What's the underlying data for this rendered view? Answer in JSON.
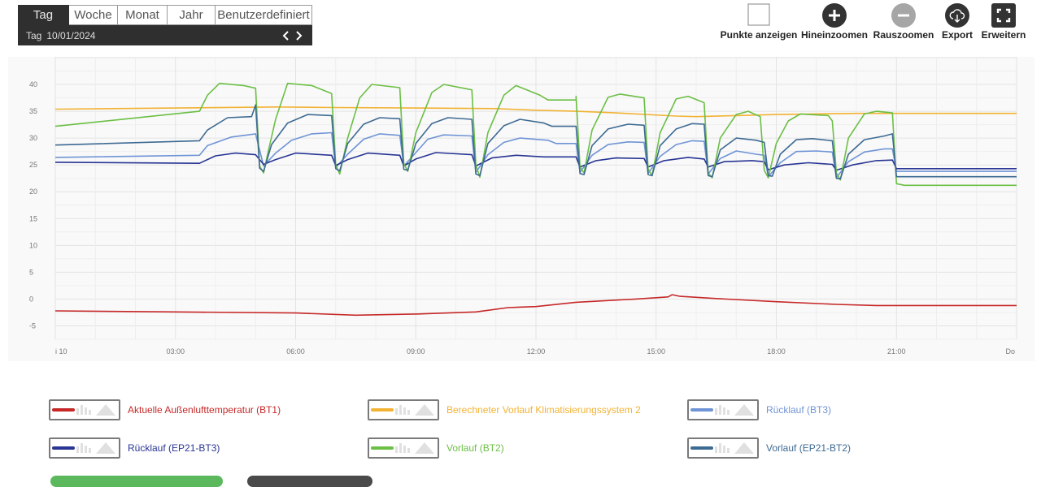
{
  "period": {
    "tabs": [
      {
        "label": "Tag",
        "active": true
      },
      {
        "label": "Woche",
        "active": false
      },
      {
        "label": "Monat",
        "active": false
      },
      {
        "label": "Jahr",
        "active": false
      },
      {
        "label": "Benutzerdefiniert",
        "active": false
      }
    ],
    "unit_label": "Tag",
    "date": "10/01/2024"
  },
  "toolbar": {
    "show_points": "Punkte anzeigen",
    "zoom_in": "Hineinzoomen",
    "zoom_out": "Rauszoomen",
    "export": "Export",
    "expand": "Erweitern"
  },
  "chart_data": {
    "type": "line",
    "title": "",
    "xlabel": "",
    "ylabel": "",
    "xlim": [
      0,
      24
    ],
    "ylim": [
      -7.5,
      45
    ],
    "x_ticks": [
      0,
      3,
      6,
      9,
      12,
      15,
      18,
      21,
      24
    ],
    "x_tick_labels": [
      "i 10",
      "03:00",
      "06:00",
      "09:00",
      "12:00",
      "15:00",
      "18:00",
      "21:00",
      "Do"
    ],
    "y_ticks": [
      -5,
      0,
      5,
      10,
      15,
      20,
      25,
      30,
      35,
      40
    ],
    "y_tick_labels": [
      "-5",
      "0",
      "5",
      "10",
      "15",
      "20",
      "25",
      "30",
      "35",
      "40"
    ],
    "grid": true,
    "legend_position": "bottom",
    "series": [
      {
        "name": "Aktuelle Außenlufttemperatur (BT1)",
        "color": "#c62828",
        "points": [
          [
            0,
            -2.2
          ],
          [
            3,
            -2.4
          ],
          [
            6,
            -2.6
          ],
          [
            7.5,
            -3.0
          ],
          [
            9,
            -2.8
          ],
          [
            10.5,
            -2.4
          ],
          [
            11.3,
            -1.6
          ],
          [
            12,
            -1.4
          ],
          [
            13,
            -0.6
          ],
          [
            14.5,
            0.0
          ],
          [
            15.3,
            0.4
          ],
          [
            15.4,
            0.8
          ],
          [
            15.6,
            0.5
          ],
          [
            16.5,
            0.1
          ],
          [
            18,
            -0.5
          ],
          [
            19.5,
            -1.0
          ],
          [
            20.5,
            -1.2
          ],
          [
            24,
            -1.2
          ]
        ]
      },
      {
        "name": "Berechneter Vorlauf Klimatisierungssystem 2",
        "color": "#f2b233",
        "points": [
          [
            0,
            35.4
          ],
          [
            3,
            35.6
          ],
          [
            5.5,
            35.8
          ],
          [
            7,
            35.7
          ],
          [
            9,
            35.6
          ],
          [
            11,
            35.5
          ],
          [
            12,
            35.2
          ],
          [
            13,
            35.0
          ],
          [
            14,
            34.7
          ],
          [
            15.5,
            34.1
          ],
          [
            16,
            34.0
          ],
          [
            17,
            34.2
          ],
          [
            18,
            34.4
          ],
          [
            20,
            34.6
          ],
          [
            24,
            34.6
          ]
        ]
      },
      {
        "name": "Rücklauf (BT3)",
        "color": "#6f94d6",
        "points": [
          [
            0,
            26.4
          ],
          [
            3.6,
            26.8
          ],
          [
            3.8,
            28.6
          ],
          [
            4.4,
            30.2
          ],
          [
            5,
            30.8
          ],
          [
            5.2,
            24.8
          ],
          [
            5.5,
            27.2
          ],
          [
            5.9,
            29.6
          ],
          [
            6.4,
            30.8
          ],
          [
            6.9,
            31.0
          ],
          [
            7,
            24.5
          ],
          [
            7.3,
            27.0
          ],
          [
            7.7,
            29.8
          ],
          [
            8.1,
            30.8
          ],
          [
            8.6,
            30.5
          ],
          [
            8.7,
            24.8
          ],
          [
            9.0,
            27.3
          ],
          [
            9.3,
            29.8
          ],
          [
            9.7,
            30.6
          ],
          [
            10.4,
            30.4
          ],
          [
            10.5,
            23.6
          ],
          [
            10.8,
            26.9
          ],
          [
            11.2,
            29.2
          ],
          [
            11.6,
            30.0
          ],
          [
            12.3,
            29.6
          ],
          [
            12.5,
            29.0
          ],
          [
            13.0,
            29.0
          ],
          [
            13.1,
            23.6
          ],
          [
            13.4,
            26.8
          ],
          [
            13.8,
            28.8
          ],
          [
            14.3,
            29.3
          ],
          [
            14.7,
            29.2
          ],
          [
            14.8,
            23.4
          ],
          [
            15.1,
            26.6
          ],
          [
            15.5,
            28.8
          ],
          [
            15.9,
            29.5
          ],
          [
            16.2,
            29.4
          ],
          [
            16.3,
            23.3
          ],
          [
            16.6,
            26.2
          ],
          [
            17.0,
            27.6
          ],
          [
            17.5,
            27.0
          ],
          [
            17.7,
            26.8
          ],
          [
            17.8,
            22.8
          ],
          [
            18.1,
            25.4
          ],
          [
            18.5,
            27.5
          ],
          [
            19.0,
            27.6
          ],
          [
            19.4,
            27.4
          ],
          [
            19.5,
            22.6
          ],
          [
            19.8,
            25.6
          ],
          [
            20.2,
            27.4
          ],
          [
            20.7,
            28.0
          ],
          [
            20.9,
            28.0
          ],
          [
            21.0,
            23.8
          ],
          [
            24,
            23.8
          ]
        ]
      },
      {
        "name": "Rücklauf (EP21-BT3)",
        "color": "#283593",
        "points": [
          [
            0,
            25.5
          ],
          [
            3.6,
            25.3
          ],
          [
            4,
            26.7
          ],
          [
            4.5,
            27.2
          ],
          [
            5,
            26.9
          ],
          [
            5.2,
            25.1
          ],
          [
            5.5,
            26.0
          ],
          [
            6,
            27.2
          ],
          [
            6.9,
            26.8
          ],
          [
            7,
            24.9
          ],
          [
            7.3,
            26.0
          ],
          [
            7.8,
            27.2
          ],
          [
            8.6,
            26.8
          ],
          [
            8.7,
            24.8
          ],
          [
            9.0,
            26.1
          ],
          [
            9.5,
            27.3
          ],
          [
            10.4,
            26.9
          ],
          [
            10.5,
            24.8
          ],
          [
            10.9,
            26.3
          ],
          [
            11.5,
            26.8
          ],
          [
            12.2,
            26.5
          ],
          [
            13.0,
            26.5
          ],
          [
            13.1,
            24.6
          ],
          [
            13.5,
            25.8
          ],
          [
            14.0,
            26.3
          ],
          [
            14.7,
            26.2
          ],
          [
            14.8,
            24.6
          ],
          [
            15.2,
            25.8
          ],
          [
            15.8,
            26.4
          ],
          [
            16.2,
            26.1
          ],
          [
            16.3,
            24.6
          ],
          [
            16.7,
            25.6
          ],
          [
            17.4,
            25.8
          ],
          [
            17.7,
            25.6
          ],
          [
            17.8,
            24.1
          ],
          [
            18.2,
            25.0
          ],
          [
            18.8,
            25.4
          ],
          [
            19.4,
            25.1
          ],
          [
            19.5,
            24.0
          ],
          [
            19.9,
            25.0
          ],
          [
            20.5,
            25.8
          ],
          [
            20.9,
            25.9
          ],
          [
            21.0,
            24.3
          ],
          [
            24,
            24.3
          ]
        ]
      },
      {
        "name": "Vorlauf (BT2)",
        "color": "#6bbf45",
        "points": [
          [
            0,
            32.2
          ],
          [
            3.6,
            35.0
          ],
          [
            3.8,
            38.0
          ],
          [
            4.1,
            40.2
          ],
          [
            4.7,
            39.8
          ],
          [
            5.0,
            39.3
          ],
          [
            5.1,
            24.8
          ],
          [
            5.2,
            23.5
          ],
          [
            5.3,
            27.0
          ],
          [
            5.5,
            33.5
          ],
          [
            5.8,
            40.2
          ],
          [
            6.4,
            39.8
          ],
          [
            6.9,
            38.3
          ],
          [
            7.0,
            25.0
          ],
          [
            7.1,
            23.3
          ],
          [
            7.3,
            30.0
          ],
          [
            7.6,
            37.5
          ],
          [
            7.9,
            40.0
          ],
          [
            8.6,
            39.4
          ],
          [
            8.7,
            25.3
          ],
          [
            8.8,
            23.8
          ],
          [
            9.0,
            31.0
          ],
          [
            9.4,
            38.5
          ],
          [
            9.7,
            40.0
          ],
          [
            10.4,
            39.0
          ],
          [
            10.5,
            25.0
          ],
          [
            10.6,
            22.7
          ],
          [
            10.8,
            31.0
          ],
          [
            11.2,
            38.0
          ],
          [
            11.5,
            39.8
          ],
          [
            12.1,
            38.0
          ],
          [
            12.3,
            37.1
          ],
          [
            13.0,
            37.1
          ],
          [
            13.0,
            37.8
          ],
          [
            13.1,
            24.6
          ],
          [
            13.2,
            23.5
          ],
          [
            13.4,
            31.5
          ],
          [
            13.8,
            37.6
          ],
          [
            14.1,
            38.2
          ],
          [
            14.7,
            37.5
          ],
          [
            14.8,
            24.3
          ],
          [
            14.9,
            23.0
          ],
          [
            15.1,
            31.0
          ],
          [
            15.5,
            37.3
          ],
          [
            15.8,
            37.8
          ],
          [
            16.2,
            36.6
          ],
          [
            16.3,
            23.5
          ],
          [
            16.4,
            22.6
          ],
          [
            16.6,
            30.0
          ],
          [
            17.0,
            34.4
          ],
          [
            17.3,
            35.0
          ],
          [
            17.6,
            34.0
          ],
          [
            17.7,
            24.0
          ],
          [
            17.8,
            22.6
          ],
          [
            18.0,
            29.0
          ],
          [
            18.3,
            33.2
          ],
          [
            18.6,
            34.5
          ],
          [
            19.3,
            34.2
          ],
          [
            19.4,
            33.2
          ],
          [
            19.5,
            23.5
          ],
          [
            19.6,
            22.2
          ],
          [
            19.8,
            30.0
          ],
          [
            20.2,
            34.5
          ],
          [
            20.5,
            35.0
          ],
          [
            20.9,
            34.7
          ],
          [
            21.0,
            21.5
          ],
          [
            21.2,
            21.2
          ],
          [
            24,
            21.2
          ]
        ]
      },
      {
        "name": "Vorlauf (EP21-BT2)",
        "color": "#3d6a93",
        "points": [
          [
            0,
            28.7
          ],
          [
            3.6,
            29.5
          ],
          [
            3.8,
            31.5
          ],
          [
            4.3,
            33.8
          ],
          [
            4.9,
            34.0
          ],
          [
            5.0,
            36.2
          ],
          [
            5.1,
            24.4
          ],
          [
            5.2,
            23.8
          ],
          [
            5.4,
            28.8
          ],
          [
            5.8,
            32.8
          ],
          [
            6.3,
            34.4
          ],
          [
            6.9,
            34.2
          ],
          [
            7.0,
            24.3
          ],
          [
            7.1,
            23.9
          ],
          [
            7.3,
            29.0
          ],
          [
            7.7,
            32.6
          ],
          [
            8.1,
            33.8
          ],
          [
            8.6,
            33.6
          ],
          [
            8.7,
            24.2
          ],
          [
            8.8,
            24.0
          ],
          [
            9.0,
            29.0
          ],
          [
            9.4,
            32.7
          ],
          [
            9.8,
            33.8
          ],
          [
            10.4,
            33.5
          ],
          [
            10.5,
            23.3
          ],
          [
            10.6,
            23.0
          ],
          [
            10.8,
            29.0
          ],
          [
            11.2,
            32.3
          ],
          [
            11.6,
            33.5
          ],
          [
            12.2,
            32.8
          ],
          [
            12.4,
            32.2
          ],
          [
            13.0,
            32.2
          ],
          [
            13.1,
            23.4
          ],
          [
            13.2,
            23.2
          ],
          [
            13.4,
            28.6
          ],
          [
            13.8,
            31.7
          ],
          [
            14.3,
            32.6
          ],
          [
            14.7,
            32.4
          ],
          [
            14.8,
            23.2
          ],
          [
            14.9,
            23.0
          ],
          [
            15.1,
            28.6
          ],
          [
            15.5,
            31.7
          ],
          [
            15.9,
            32.7
          ],
          [
            16.2,
            32.6
          ],
          [
            16.3,
            23.0
          ],
          [
            16.4,
            22.8
          ],
          [
            16.6,
            27.8
          ],
          [
            17.0,
            30.0
          ],
          [
            17.5,
            29.6
          ],
          [
            17.7,
            29.2
          ],
          [
            17.8,
            23.0
          ],
          [
            17.9,
            22.9
          ],
          [
            18.1,
            27.0
          ],
          [
            18.5,
            29.7
          ],
          [
            18.9,
            29.9
          ],
          [
            19.4,
            29.5
          ],
          [
            19.5,
            22.5
          ],
          [
            19.6,
            22.4
          ],
          [
            19.8,
            27.0
          ],
          [
            20.2,
            29.7
          ],
          [
            20.7,
            30.4
          ],
          [
            20.9,
            30.8
          ],
          [
            21.0,
            22.8
          ],
          [
            24,
            22.8
          ]
        ]
      }
    ]
  }
}
